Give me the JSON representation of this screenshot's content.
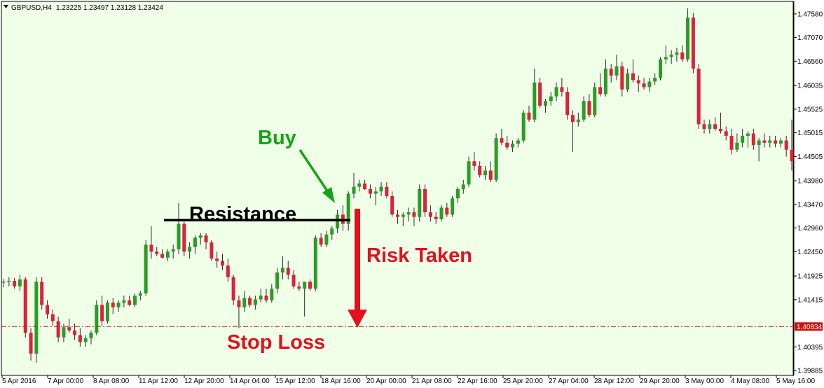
{
  "header": {
    "symbol": "GBPUSD,H4",
    "ohlc": "1.23225 1.23497 1.23128 1.23424"
  },
  "colors": {
    "background": "#f0ffe8",
    "bull": "#2a9d24",
    "bear": "#e0203a",
    "wick": "#2b2b2b",
    "buy_text": "#14a514",
    "risk_text": "#e3101d",
    "level_line": "#d01010",
    "resistance_line": "#000000"
  },
  "annotations": {
    "buy": "Buy",
    "resistance": "Resistance",
    "risk_taken": "Risk Taken",
    "stop_loss": "Stop Loss"
  },
  "chart_data": {
    "type": "candlestick",
    "symbol": "GBPUSD",
    "timeframe": "H4",
    "y_ticks": [
      "1.47580",
      "1.47070",
      "1.46560",
      "1.46035",
      "1.45525",
      "1.45015",
      "1.44505",
      "1.43980",
      "1.43470",
      "1.42960",
      "1.42450",
      "1.41925",
      "1.41415",
      "1.40395",
      "1.39885"
    ],
    "ylim": [
      1.3978,
      1.4785
    ],
    "x_ticks": [
      "5 Apr 2016",
      "7 Apr 00:00",
      "8 Apr 08:00",
      "11 Apr 12:00",
      "12 Apr 20:00",
      "14 Apr 04:00",
      "15 Apr 12:00",
      "18 Apr 16:00",
      "20 Apr 00:00",
      "21 Apr 08:00",
      "22 Apr 16:00",
      "25 Apr 20:00",
      "27 Apr 04:00",
      "28 Apr 12:00",
      "29 Apr 20:00",
      "3 May 00:00",
      "4 May 08:00",
      "5 May 16:00"
    ],
    "stop_loss_level": "1.40834",
    "resistance_level": 1.4313,
    "candles": [
      [
        1.4178,
        1.4186,
        1.4168,
        1.418
      ],
      [
        1.418,
        1.419,
        1.417,
        1.4182
      ],
      [
        1.4182,
        1.4188,
        1.4165,
        1.417
      ],
      [
        1.417,
        1.4195,
        1.416,
        1.4185
      ],
      [
        1.4185,
        1.419,
        1.406,
        1.407
      ],
      [
        1.407,
        1.408,
        1.401,
        1.4025
      ],
      [
        1.4025,
        1.419,
        1.4005,
        1.418
      ],
      [
        1.418,
        1.419,
        1.412,
        1.413
      ],
      [
        1.413,
        1.414,
        1.41,
        1.411
      ],
      [
        1.411,
        1.412,
        1.4085,
        1.4095
      ],
      [
        1.4095,
        1.4105,
        1.405,
        1.406
      ],
      [
        1.406,
        1.409,
        1.405,
        1.4082
      ],
      [
        1.4082,
        1.41,
        1.407,
        1.4075
      ],
      [
        1.4075,
        1.409,
        1.4055,
        1.4065
      ],
      [
        1.4065,
        1.408,
        1.404,
        1.405
      ],
      [
        1.405,
        1.4065,
        1.404,
        1.4058
      ],
      [
        1.4058,
        1.4075,
        1.4045,
        1.407
      ],
      [
        1.407,
        1.414,
        1.4065,
        1.413
      ],
      [
        1.413,
        1.415,
        1.4085,
        1.4095
      ],
      [
        1.4095,
        1.414,
        1.409,
        1.4135
      ],
      [
        1.4135,
        1.4145,
        1.411,
        1.4125
      ],
      [
        1.4125,
        1.414,
        1.4115,
        1.4135
      ],
      [
        1.4135,
        1.415,
        1.4125,
        1.414
      ],
      [
        1.414,
        1.415,
        1.4128,
        1.413
      ],
      [
        1.413,
        1.4155,
        1.4125,
        1.415
      ],
      [
        1.415,
        1.416,
        1.414,
        1.4155
      ],
      [
        1.4155,
        1.427,
        1.415,
        1.426
      ],
      [
        1.426,
        1.43,
        1.423,
        1.4245
      ],
      [
        1.4245,
        1.4255,
        1.4235,
        1.424
      ],
      [
        1.424,
        1.425,
        1.423,
        1.4232
      ],
      [
        1.4232,
        1.425,
        1.4225,
        1.4245
      ],
      [
        1.4245,
        1.426,
        1.423,
        1.425
      ],
      [
        1.425,
        1.435,
        1.424,
        1.4305
      ],
      [
        1.4305,
        1.431,
        1.4235,
        1.4245
      ],
      [
        1.4245,
        1.4265,
        1.423,
        1.4255
      ],
      [
        1.4255,
        1.428,
        1.424,
        1.4275
      ],
      [
        1.4275,
        1.4285,
        1.426,
        1.428
      ],
      [
        1.428,
        1.4285,
        1.425,
        1.4265
      ],
      [
        1.4265,
        1.427,
        1.4225,
        1.423
      ],
      [
        1.423,
        1.4245,
        1.421,
        1.4225
      ],
      [
        1.4225,
        1.424,
        1.4205,
        1.4215
      ],
      [
        1.4215,
        1.423,
        1.418,
        1.419
      ],
      [
        1.419,
        1.4195,
        1.413,
        1.414
      ],
      [
        1.414,
        1.415,
        1.408,
        1.4125
      ],
      [
        1.4125,
        1.416,
        1.4115,
        1.4145
      ],
      [
        1.4145,
        1.415,
        1.4125,
        1.413
      ],
      [
        1.413,
        1.415,
        1.412,
        1.4142
      ],
      [
        1.4142,
        1.4165,
        1.4135,
        1.415
      ],
      [
        1.415,
        1.4165,
        1.4135,
        1.414
      ],
      [
        1.414,
        1.4175,
        1.4135,
        1.4165
      ],
      [
        1.4165,
        1.421,
        1.4155,
        1.42
      ],
      [
        1.42,
        1.4235,
        1.4185,
        1.421
      ],
      [
        1.421,
        1.4225,
        1.4185,
        1.4195
      ],
      [
        1.4195,
        1.4205,
        1.4165,
        1.417
      ],
      [
        1.417,
        1.418,
        1.416,
        1.4165
      ],
      [
        1.4165,
        1.4175,
        1.4105,
        1.418
      ],
      [
        1.418,
        1.4185,
        1.416,
        1.4165
      ],
      [
        1.4165,
        1.428,
        1.416,
        1.4275
      ],
      [
        1.4275,
        1.4285,
        1.4255,
        1.426
      ],
      [
        1.426,
        1.429,
        1.4255,
        1.4282
      ],
      [
        1.4282,
        1.43,
        1.427,
        1.4295
      ],
      [
        1.4295,
        1.4335,
        1.4285,
        1.4325
      ],
      [
        1.4325,
        1.4345,
        1.429,
        1.4305
      ],
      [
        1.4305,
        1.4375,
        1.429,
        1.437
      ],
      [
        1.437,
        1.4415,
        1.436,
        1.4385
      ],
      [
        1.4385,
        1.44,
        1.4375,
        1.4392
      ],
      [
        1.4392,
        1.44,
        1.4378,
        1.438
      ],
      [
        1.438,
        1.439,
        1.436,
        1.437
      ],
      [
        1.437,
        1.4385,
        1.4345,
        1.4375
      ],
      [
        1.4375,
        1.4395,
        1.4365,
        1.4385
      ],
      [
        1.4385,
        1.4395,
        1.436,
        1.4365
      ],
      [
        1.4365,
        1.4375,
        1.432,
        1.4325
      ],
      [
        1.4325,
        1.4335,
        1.4305,
        1.432
      ],
      [
        1.432,
        1.433,
        1.43,
        1.4325
      ],
      [
        1.4325,
        1.434,
        1.431,
        1.433
      ],
      [
        1.433,
        1.434,
        1.43,
        1.432
      ],
      [
        1.432,
        1.439,
        1.431,
        1.438
      ],
      [
        1.438,
        1.439,
        1.432,
        1.433
      ],
      [
        1.433,
        1.4345,
        1.431,
        1.432
      ],
      [
        1.432,
        1.433,
        1.4305,
        1.4315
      ],
      [
        1.4315,
        1.4345,
        1.431,
        1.434
      ],
      [
        1.434,
        1.435,
        1.432,
        1.4325
      ],
      [
        1.4325,
        1.4365,
        1.432,
        1.436
      ],
      [
        1.436,
        1.4385,
        1.435,
        1.438
      ],
      [
        1.438,
        1.44,
        1.437,
        1.439
      ],
      [
        1.439,
        1.445,
        1.4385,
        1.444
      ],
      [
        1.444,
        1.446,
        1.442,
        1.443
      ],
      [
        1.443,
        1.444,
        1.4405,
        1.441
      ],
      [
        1.441,
        1.443,
        1.44,
        1.442
      ],
      [
        1.442,
        1.444,
        1.4395,
        1.44
      ],
      [
        1.44,
        1.45,
        1.4395,
        1.449
      ],
      [
        1.449,
        1.451,
        1.4475,
        1.448
      ],
      [
        1.448,
        1.4495,
        1.4465,
        1.447
      ],
      [
        1.447,
        1.4485,
        1.446,
        1.4478
      ],
      [
        1.4478,
        1.449,
        1.447,
        1.4485
      ],
      [
        1.4485,
        1.455,
        1.448,
        1.4545
      ],
      [
        1.4545,
        1.456,
        1.4525,
        1.453
      ],
      [
        1.453,
        1.464,
        1.4525,
        1.461
      ],
      [
        1.461,
        1.462,
        1.4555,
        1.456
      ],
      [
        1.456,
        1.4575,
        1.4545,
        1.457
      ],
      [
        1.457,
        1.459,
        1.456,
        1.458
      ],
      [
        1.458,
        1.461,
        1.457,
        1.46
      ],
      [
        1.46,
        1.462,
        1.458,
        1.459
      ],
      [
        1.459,
        1.46,
        1.453,
        1.454
      ],
      [
        1.454,
        1.455,
        1.446,
        1.4525
      ],
      [
        1.4525,
        1.4545,
        1.4515,
        1.453
      ],
      [
        1.453,
        1.458,
        1.4525,
        1.457
      ],
      [
        1.457,
        1.4585,
        1.4535,
        1.454
      ],
      [
        1.454,
        1.461,
        1.4535,
        1.46
      ],
      [
        1.46,
        1.463,
        1.458,
        1.4585
      ],
      [
        1.4585,
        1.466,
        1.458,
        1.464
      ],
      [
        1.464,
        1.465,
        1.461,
        1.4625
      ],
      [
        1.4625,
        1.467,
        1.4615,
        1.4645
      ],
      [
        1.4645,
        1.4655,
        1.458,
        1.4595
      ],
      [
        1.4595,
        1.464,
        1.459,
        1.463
      ],
      [
        1.463,
        1.466,
        1.461,
        1.4615
      ],
      [
        1.4615,
        1.4625,
        1.459,
        1.4608
      ],
      [
        1.4608,
        1.462,
        1.4595,
        1.46
      ],
      [
        1.46,
        1.462,
        1.459,
        1.4612
      ],
      [
        1.4612,
        1.463,
        1.4605,
        1.462
      ],
      [
        1.462,
        1.4665,
        1.4615,
        1.466
      ],
      [
        1.466,
        1.469,
        1.465,
        1.4665
      ],
      [
        1.4665,
        1.468,
        1.465,
        1.467
      ],
      [
        1.467,
        1.4685,
        1.4655,
        1.4675
      ],
      [
        1.4675,
        1.469,
        1.4655,
        1.466
      ],
      [
        1.466,
        1.477,
        1.4655,
        1.475
      ],
      [
        1.475,
        1.476,
        1.463,
        1.464
      ],
      [
        1.464,
        1.465,
        1.451,
        1.452
      ],
      [
        1.452,
        1.453,
        1.45,
        1.451
      ],
      [
        1.451,
        1.453,
        1.45,
        1.452
      ],
      [
        1.452,
        1.4535,
        1.4505,
        1.451
      ],
      [
        1.451,
        1.4545,
        1.45,
        1.4505
      ],
      [
        1.4505,
        1.4515,
        1.4485,
        1.4495
      ],
      [
        1.4495,
        1.451,
        1.4455,
        1.4465
      ],
      [
        1.4465,
        1.45,
        1.446,
        1.448
      ],
      [
        1.448,
        1.451,
        1.447,
        1.4495
      ],
      [
        1.4495,
        1.4505,
        1.447,
        1.45
      ],
      [
        1.45,
        1.451,
        1.4465,
        1.4475
      ],
      [
        1.4475,
        1.449,
        1.444,
        1.4485
      ],
      [
        1.4485,
        1.45,
        1.447,
        1.448
      ],
      [
        1.448,
        1.4495,
        1.447,
        1.4485
      ],
      [
        1.4485,
        1.4495,
        1.447,
        1.4478
      ],
      [
        1.4478,
        1.449,
        1.447,
        1.4485
      ],
      [
        1.4485,
        1.4495,
        1.445,
        1.4465
      ],
      [
        1.4465,
        1.453,
        1.442,
        1.444
      ]
    ]
  }
}
